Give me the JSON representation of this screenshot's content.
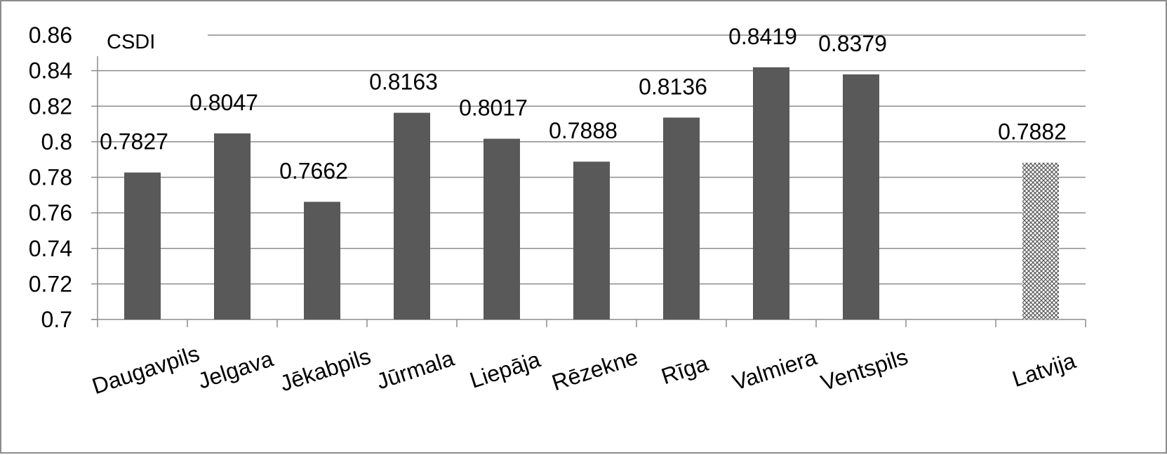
{
  "chart_data": {
    "type": "bar",
    "title": "",
    "ylabel": "CSDI",
    "xlabel": "",
    "ylim": [
      0.7,
      0.86
    ],
    "ytick_step": 0.02,
    "yticks": [
      "0.7",
      "0.72",
      "0.74",
      "0.76",
      "0.78",
      "0.8",
      "0.82",
      "0.84",
      "0.86"
    ],
    "grid": true,
    "legend": "none",
    "categories": [
      "Daugavpils",
      "Jelgava",
      "Jēkabpils",
      "Jūrmala",
      "Liepāja",
      "Rēzekne",
      "Rīga",
      "Valmiera",
      "Ventspils",
      "",
      "Latvija"
    ],
    "values": [
      0.7827,
      0.8047,
      0.7662,
      0.8163,
      0.8017,
      0.7888,
      0.8136,
      0.8419,
      0.8379,
      null,
      0.7882
    ],
    "data_labels": [
      "0.7827",
      "0.8047",
      "0.7662",
      "0.8163",
      "0.8017",
      "0.7888",
      "0.8136",
      "0.8419",
      "0.8379",
      "",
      "0.7882"
    ],
    "bar_fill": [
      "solid",
      "solid",
      "solid",
      "solid",
      "solid",
      "solid",
      "solid",
      "solid",
      "solid",
      "none",
      "crosshatch"
    ],
    "colors": {
      "bar": "#595959",
      "grid": "#8c8c8c",
      "axis": "#8c8c8c",
      "border": "#8c8c8c",
      "hatch": "#5a5a5a"
    }
  }
}
